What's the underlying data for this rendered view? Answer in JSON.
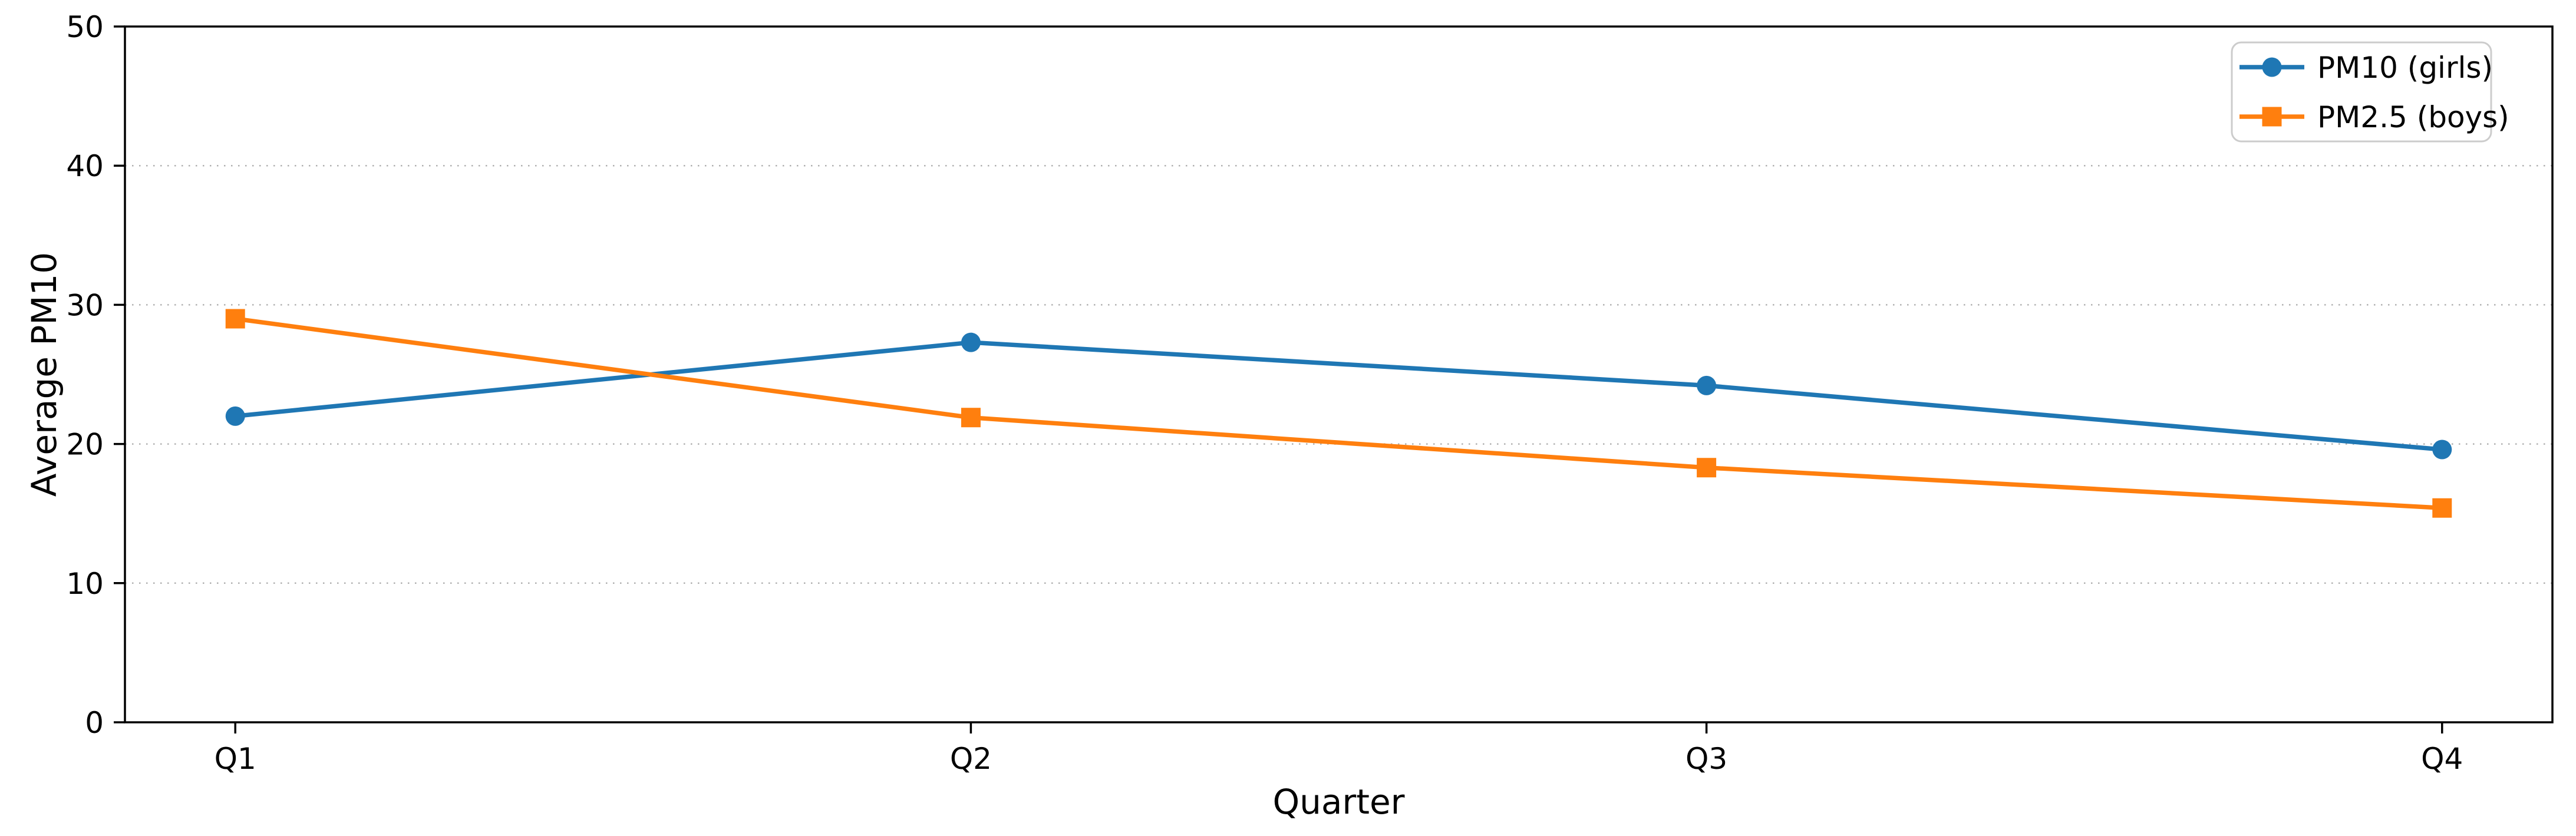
{
  "chart_data": {
    "type": "line",
    "title": "",
    "xlabel": "Quarter",
    "ylabel": "Average PM10",
    "categories": [
      "Q1",
      "Q2",
      "Q3",
      "Q4"
    ],
    "series": [
      {
        "name": "PM10 (girls)",
        "color": "#1f77b4",
        "marker": "circle",
        "values": [
          22.0,
          27.3,
          24.2,
          19.6
        ]
      },
      {
        "name": "PM2.5 (boys)",
        "color": "#ff7f0e",
        "marker": "square",
        "values": [
          29.0,
          21.9,
          18.3,
          15.4
        ]
      }
    ],
    "ylim": [
      0,
      50
    ],
    "yticks": [
      0,
      10,
      20,
      30,
      40,
      50
    ],
    "ytick_labels": [
      "0",
      "10",
      "20",
      "30",
      "40",
      "50"
    ],
    "legend_position": "upper right",
    "grid": {
      "axis": "y",
      "style": "dotted",
      "color": "#b0b0b0"
    },
    "axis_color": "#000000",
    "background_color": "#ffffff",
    "legend_border_color": "#cccccc"
  }
}
